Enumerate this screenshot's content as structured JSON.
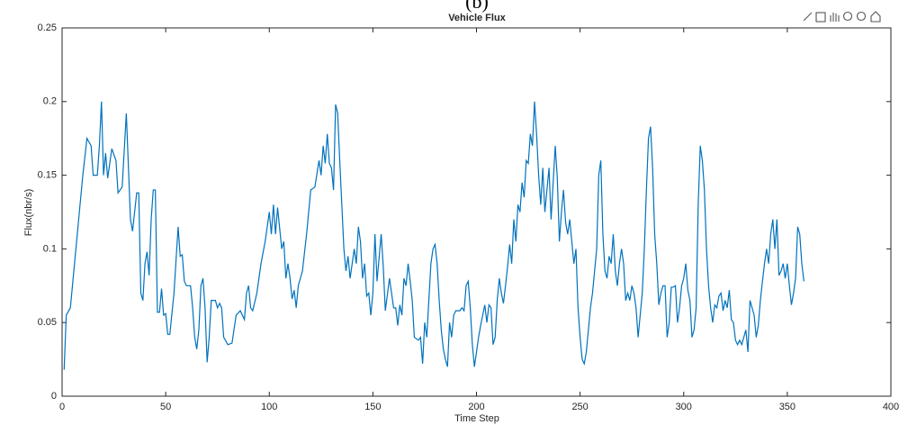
{
  "chart_data": {
    "type": "line",
    "caption": "(b)",
    "title": "Vehicle Flux",
    "xlabel": "Time Step",
    "ylabel": "Flux(nbr/s)",
    "color": "#0072bd",
    "xlim": [
      0,
      400
    ],
    "xticks": [
      0,
      50,
      100,
      150,
      200,
      250,
      300,
      350,
      400
    ],
    "ylim": [
      0,
      0.25
    ],
    "yticks": [
      0,
      0.05,
      0.1,
      0.15,
      0.2,
      0.25
    ],
    "x": [
      1,
      2,
      4,
      6,
      8,
      10,
      12,
      14,
      15,
      17,
      18,
      19,
      20,
      21,
      22,
      24,
      26,
      27,
      29,
      31,
      33,
      34,
      36,
      37,
      38,
      39,
      40,
      41,
      42,
      43,
      44,
      45,
      46,
      47,
      48,
      49,
      50,
      51,
      52,
      54,
      56,
      57,
      58,
      59,
      60,
      62,
      63,
      64,
      65,
      66,
      67,
      68,
      69,
      70,
      71,
      72,
      74,
      75,
      76,
      77,
      78,
      80,
      82,
      84,
      86,
      88,
      89,
      90,
      91,
      92,
      94,
      96,
      98,
      100,
      101,
      102,
      103,
      104,
      106,
      107,
      108,
      109,
      110,
      111,
      112,
      113,
      114,
      116,
      118,
      120,
      122,
      124,
      125,
      126,
      127,
      128,
      129,
      130,
      131,
      132,
      133,
      134,
      136,
      137,
      138,
      139,
      141,
      142,
      143,
      144,
      145,
      146,
      147,
      148,
      149,
      150,
      151,
      152,
      154,
      155,
      156,
      158,
      159,
      160,
      161,
      162,
      163,
      164,
      165,
      166,
      167,
      168,
      169,
      170,
      172,
      173,
      174,
      175,
      176,
      177,
      178,
      179,
      180,
      181,
      182,
      183,
      184,
      185,
      186,
      187,
      188,
      189,
      190,
      192,
      193,
      194,
      195,
      196,
      197,
      198,
      199,
      200,
      201,
      202,
      203,
      204,
      205,
      206,
      207,
      208,
      209,
      210,
      211,
      212,
      213,
      214,
      215,
      216,
      217,
      218,
      219,
      220,
      221,
      222,
      223,
      224,
      225,
      226,
      227,
      228,
      229,
      230,
      231,
      232,
      233,
      234,
      235,
      236,
      237,
      238,
      239,
      240,
      241,
      242,
      243,
      244,
      245,
      247,
      248,
      249,
      250,
      251,
      252,
      253,
      254,
      255,
      256,
      257,
      258,
      259,
      260,
      261,
      262,
      263,
      264,
      265,
      266,
      267,
      268,
      269,
      270,
      271,
      272,
      273,
      274,
      275,
      276,
      277,
      278,
      279,
      280,
      281,
      282,
      283,
      284,
      285,
      286,
      287,
      288,
      289,
      290,
      291,
      292,
      293,
      294,
      295,
      296,
      297,
      298,
      299,
      300,
      301,
      302,
      303,
      304,
      305,
      306,
      307,
      308,
      309,
      310,
      311,
      312,
      313,
      314,
      315,
      316,
      317,
      318,
      319,
      320,
      321,
      322,
      323,
      324,
      325,
      326,
      327,
      328,
      329,
      330,
      331,
      332,
      333,
      334,
      335,
      336,
      337,
      338,
      339,
      340,
      341,
      342,
      343,
      344,
      345,
      346,
      347,
      348,
      349,
      350,
      351,
      352,
      353,
      354,
      355,
      356,
      357,
      358
    ],
    "values": [
      0.018,
      0.055,
      0.06,
      0.09,
      0.12,
      0.15,
      0.175,
      0.17,
      0.15,
      0.15,
      0.17,
      0.2,
      0.15,
      0.165,
      0.148,
      0.168,
      0.16,
      0.138,
      0.142,
      0.192,
      0.12,
      0.112,
      0.138,
      0.138,
      0.07,
      0.065,
      0.09,
      0.098,
      0.082,
      0.12,
      0.14,
      0.14,
      0.057,
      0.057,
      0.073,
      0.055,
      0.056,
      0.042,
      0.042,
      0.07,
      0.115,
      0.095,
      0.096,
      0.078,
      0.075,
      0.075,
      0.06,
      0.04,
      0.032,
      0.045,
      0.075,
      0.08,
      0.06,
      0.023,
      0.04,
      0.065,
      0.065,
      0.06,
      0.063,
      0.06,
      0.04,
      0.035,
      0.036,
      0.055,
      0.058,
      0.052,
      0.07,
      0.075,
      0.06,
      0.058,
      0.07,
      0.09,
      0.105,
      0.125,
      0.11,
      0.13,
      0.11,
      0.128,
      0.1,
      0.105,
      0.08,
      0.09,
      0.08,
      0.066,
      0.072,
      0.06,
      0.075,
      0.085,
      0.11,
      0.14,
      0.142,
      0.16,
      0.15,
      0.17,
      0.158,
      0.178,
      0.158,
      0.155,
      0.14,
      0.198,
      0.192,
      0.16,
      0.1,
      0.085,
      0.095,
      0.08,
      0.1,
      0.09,
      0.115,
      0.105,
      0.08,
      0.09,
      0.068,
      0.07,
      0.055,
      0.07,
      0.11,
      0.078,
      0.11,
      0.088,
      0.058,
      0.08,
      0.07,
      0.06,
      0.06,
      0.048,
      0.062,
      0.055,
      0.08,
      0.075,
      0.09,
      0.078,
      0.065,
      0.04,
      0.038,
      0.04,
      0.022,
      0.05,
      0.04,
      0.065,
      0.09,
      0.1,
      0.103,
      0.09,
      0.065,
      0.045,
      0.032,
      0.025,
      0.02,
      0.05,
      0.04,
      0.055,
      0.058,
      0.058,
      0.06,
      0.058,
      0.075,
      0.078,
      0.06,
      0.035,
      0.02,
      0.03,
      0.04,
      0.048,
      0.055,
      0.062,
      0.05,
      0.062,
      0.06,
      0.035,
      0.04,
      0.065,
      0.08,
      0.07,
      0.063,
      0.075,
      0.088,
      0.103,
      0.09,
      0.12,
      0.105,
      0.13,
      0.125,
      0.145,
      0.135,
      0.16,
      0.158,
      0.178,
      0.17,
      0.2,
      0.178,
      0.15,
      0.13,
      0.155,
      0.125,
      0.14,
      0.155,
      0.12,
      0.145,
      0.17,
      0.148,
      0.105,
      0.125,
      0.14,
      0.118,
      0.11,
      0.12,
      0.09,
      0.1,
      0.06,
      0.04,
      0.025,
      0.022,
      0.03,
      0.045,
      0.06,
      0.07,
      0.085,
      0.1,
      0.15,
      0.16,
      0.11,
      0.085,
      0.08,
      0.095,
      0.09,
      0.11,
      0.085,
      0.075,
      0.09,
      0.1,
      0.09,
      0.065,
      0.07,
      0.065,
      0.075,
      0.07,
      0.06,
      0.04,
      0.055,
      0.07,
      0.1,
      0.14,
      0.175,
      0.183,
      0.155,
      0.11,
      0.09,
      0.062,
      0.07,
      0.075,
      0.075,
      0.04,
      0.05,
      0.074,
      0.074,
      0.075,
      0.05,
      0.06,
      0.075,
      0.08,
      0.09,
      0.072,
      0.065,
      0.04,
      0.045,
      0.06,
      0.13,
      0.17,
      0.16,
      0.14,
      0.1,
      0.075,
      0.06,
      0.05,
      0.062,
      0.06,
      0.068,
      0.07,
      0.058,
      0.065,
      0.06,
      0.072,
      0.052,
      0.05,
      0.038,
      0.035,
      0.038,
      0.035,
      0.04,
      0.045,
      0.03,
      0.065,
      0.06,
      0.055,
      0.04,
      0.048,
      0.065,
      0.078,
      0.09,
      0.1,
      0.09,
      0.11,
      0.12,
      0.1,
      0.12,
      0.082,
      0.085,
      0.09,
      0.08,
      0.09,
      0.075,
      0.062,
      0.07,
      0.08,
      0.115,
      0.11,
      0.09,
      0.078
    ]
  }
}
